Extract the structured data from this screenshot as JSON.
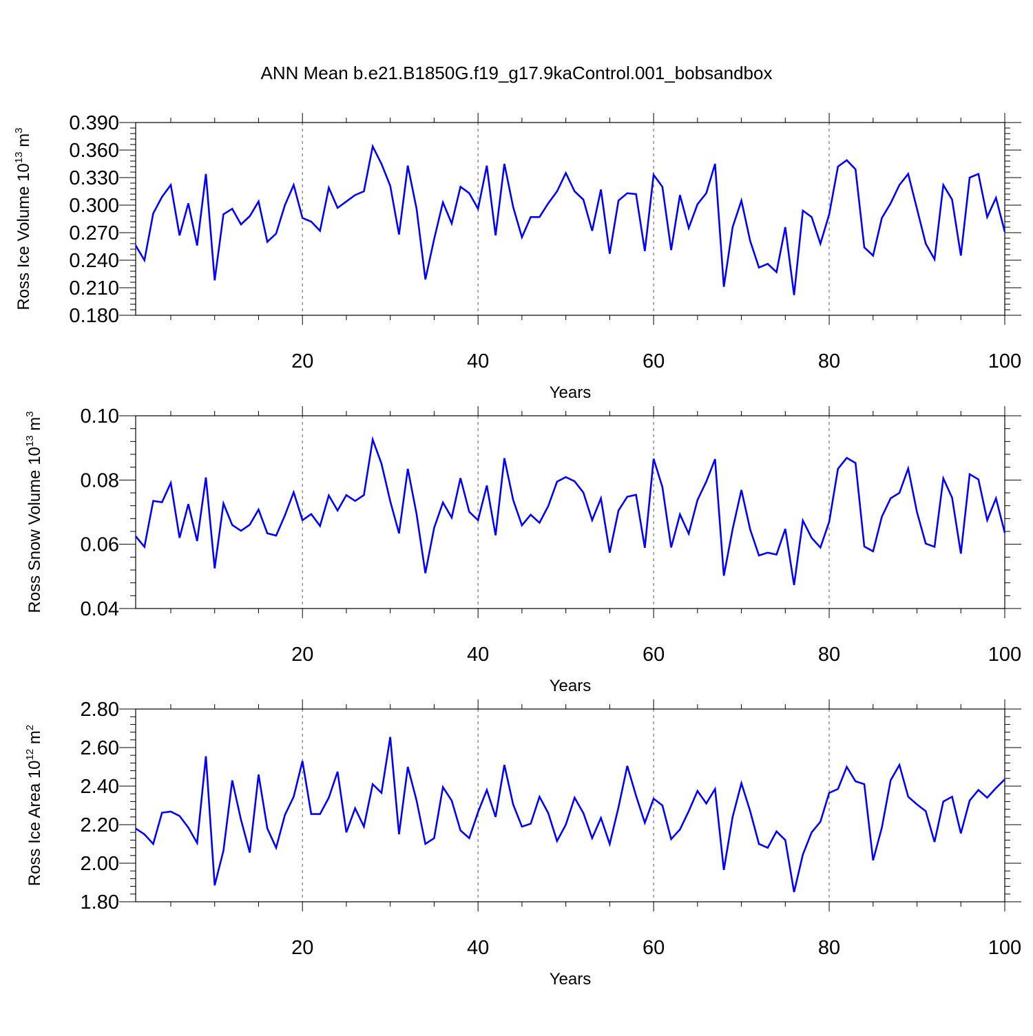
{
  "title": "ANN Mean b.e21.B1850G.f19_g17.9kaControl.001_bobsandbox",
  "colors": {
    "series": "#0000ff",
    "axis": "#000000",
    "grid": "#555555"
  },
  "chart_data": [
    {
      "type": "line",
      "name": "ross-ice-volume",
      "ylabel": {
        "main": "Ross Ice Volume 10",
        "sup": "13",
        "tail": " m",
        "sup2": "3"
      },
      "xlabel": "Years",
      "xlim": [
        1,
        100
      ],
      "ylim": [
        0.18,
        0.39
      ],
      "yticks": [
        "0.180",
        "0.210",
        "0.240",
        "0.270",
        "0.300",
        "0.330",
        "0.360",
        "0.390"
      ],
      "xticks": [
        "20",
        "40",
        "60",
        "80",
        "100"
      ],
      "grid": "dashed vertical at x=20,40,60,80",
      "series": [
        {
          "values": [
            0.256,
            0.24,
            0.291,
            0.309,
            0.322,
            0.267,
            0.302,
            0.256,
            0.334,
            0.218,
            0.29,
            0.296,
            0.279,
            0.288,
            0.304,
            0.26,
            0.269,
            0.3,
            0.322,
            0.286,
            0.282,
            0.272,
            0.319,
            0.297,
            0.304,
            0.311,
            0.315,
            0.364,
            0.345,
            0.321,
            0.268,
            0.343,
            0.296,
            0.219,
            0.263,
            0.303,
            0.28,
            0.32,
            0.313,
            0.296,
            0.343,
            0.267,
            0.345,
            0.298,
            0.265,
            0.287,
            0.287,
            0.302,
            0.315,
            0.335,
            0.315,
            0.306,
            0.272,
            0.317,
            0.247,
            0.305,
            0.313,
            0.312,
            0.25,
            0.333,
            0.32,
            0.251,
            0.311,
            0.275,
            0.301,
            0.313,
            0.345,
            0.211,
            0.276,
            0.305,
            0.261,
            0.232,
            0.236,
            0.227,
            0.276,
            0.202,
            0.294,
            0.287,
            0.258,
            0.29,
            0.342,
            0.349,
            0.339,
            0.254,
            0.245,
            0.286,
            0.302,
            0.322,
            0.334,
            0.296,
            0.258,
            0.241,
            0.322,
            0.306,
            0.245,
            0.33,
            0.334,
            0.287,
            0.308,
            0.271
          ]
        }
      ]
    },
    {
      "type": "line",
      "name": "ross-snow-volume",
      "ylabel": {
        "main": "Ross Snow Volume 10",
        "sup": "13",
        "tail": " m",
        "sup2": "3"
      },
      "xlabel": "Years",
      "xlim": [
        1,
        100
      ],
      "ylim": [
        0.04,
        0.1
      ],
      "yticks": [
        "0.04",
        "0.06",
        "0.08",
        "0.10"
      ],
      "xticks": [
        "20",
        "40",
        "60",
        "80",
        "100"
      ],
      "grid": "dashed vertical at x=20,40,60,80",
      "series": [
        {
          "values": [
            0.0625,
            0.0592,
            0.0735,
            0.0731,
            0.0791,
            0.062,
            0.0725,
            0.061,
            0.0808,
            0.0525,
            0.0727,
            0.066,
            0.0642,
            0.0661,
            0.0708,
            0.0634,
            0.0627,
            0.069,
            0.0762,
            0.0675,
            0.0694,
            0.0657,
            0.0752,
            0.0705,
            0.0753,
            0.0735,
            0.0753,
            0.0926,
            0.0851,
            0.0734,
            0.0634,
            0.0835,
            0.0694,
            0.051,
            0.0651,
            0.073,
            0.0683,
            0.0806,
            0.0701,
            0.0675,
            0.0783,
            0.0628,
            0.0868,
            0.0738,
            0.0659,
            0.0692,
            0.0667,
            0.0719,
            0.0795,
            0.0809,
            0.0796,
            0.0761,
            0.0675,
            0.0743,
            0.0574,
            0.0705,
            0.0748,
            0.0754,
            0.0589,
            0.0866,
            0.0778,
            0.059,
            0.0693,
            0.0633,
            0.0738,
            0.0795,
            0.0865,
            0.0502,
            0.0647,
            0.0769,
            0.0646,
            0.0565,
            0.0574,
            0.0568,
            0.0648,
            0.0473,
            0.0674,
            0.062,
            0.059,
            0.067,
            0.0835,
            0.0869,
            0.0853,
            0.0593,
            0.0578,
            0.0686,
            0.0743,
            0.076,
            0.0836,
            0.07,
            0.0602,
            0.0592,
            0.0805,
            0.0745,
            0.0571,
            0.0818,
            0.0802,
            0.0675,
            0.0743,
            0.0636
          ]
        }
      ]
    },
    {
      "type": "line",
      "name": "ross-ice-area",
      "ylabel": {
        "main": "Ross Ice Area 10",
        "sup": "12",
        "tail": " m",
        "sup2": "2"
      },
      "xlabel": "Years",
      "xlim": [
        1,
        100
      ],
      "ylim": [
        1.8,
        2.8
      ],
      "yticks": [
        "1.80",
        "2.00",
        "2.20",
        "2.40",
        "2.60",
        "2.80"
      ],
      "xticks": [
        "20",
        "40",
        "60",
        "80",
        "100"
      ],
      "grid": "dashed vertical at x=20,40,60,80",
      "series": [
        {
          "values": [
            2.18,
            2.15,
            2.1,
            2.262,
            2.268,
            2.245,
            2.185,
            2.105,
            2.555,
            1.885,
            2.065,
            2.43,
            2.225,
            2.055,
            2.46,
            2.18,
            2.08,
            2.25,
            2.345,
            2.53,
            2.255,
            2.255,
            2.34,
            2.475,
            2.16,
            2.285,
            2.19,
            2.41,
            2.365,
            2.655,
            2.15,
            2.5,
            2.325,
            2.1,
            2.13,
            2.395,
            2.325,
            2.17,
            2.13,
            2.265,
            2.38,
            2.24,
            2.51,
            2.305,
            2.19,
            2.205,
            2.345,
            2.26,
            2.115,
            2.2,
            2.34,
            2.26,
            2.13,
            2.235,
            2.1,
            2.29,
            2.505,
            2.35,
            2.21,
            2.335,
            2.3,
            2.125,
            2.175,
            2.27,
            2.375,
            2.31,
            2.385,
            1.965,
            2.24,
            2.415,
            2.27,
            2.1,
            2.08,
            2.165,
            2.12,
            1.85,
            2.045,
            2.16,
            2.215,
            2.365,
            2.385,
            2.5,
            2.425,
            2.41,
            2.015,
            2.185,
            2.43,
            2.51,
            2.345,
            2.305,
            2.27,
            2.11,
            2.32,
            2.345,
            2.155,
            2.325,
            2.38,
            2.34,
            2.39,
            2.435
          ]
        }
      ]
    }
  ]
}
